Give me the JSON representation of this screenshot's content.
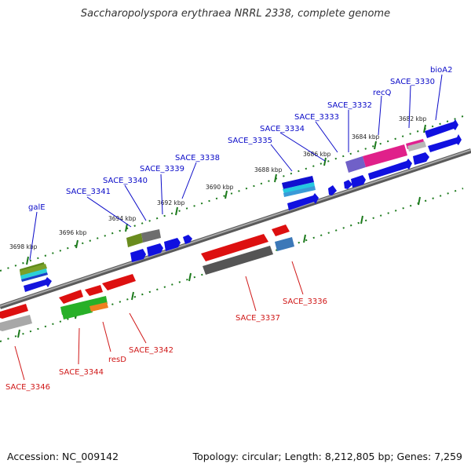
{
  "title": "Saccharopolyspora erythraea NRRL 2338, complete genome",
  "accession": "Accession: NC_009142",
  "summary": "Topology: circular; Length: 8,212,805 bp; Genes: 7,259",
  "colors": {
    "forward_label": "#0a0ac8",
    "reverse_label": "#d01818",
    "backbone": "#808080",
    "tick": "#1c7a1c"
  },
  "kbp_labels": [
    "3698 kbp",
    "3696 kbp",
    "3694 kbp",
    "3692 kbp",
    "3690 kbp",
    "3688 kbp",
    "3686 kbp",
    "3684 kbp",
    "3682 kbp"
  ],
  "forward_genes": [
    "galE",
    "SACE_3341",
    "SACE_3340",
    "SACE_3339",
    "SACE_3338",
    "SACE_3335",
    "SACE_3334",
    "SACE_3333",
    "SACE_3332",
    "recQ",
    "SACE_3330",
    "bioA2"
  ],
  "reverse_genes": [
    "SACE_3346",
    "SACE_3344",
    "resD",
    "SACE_3342",
    "SACE_3337",
    "SACE_3336"
  ]
}
